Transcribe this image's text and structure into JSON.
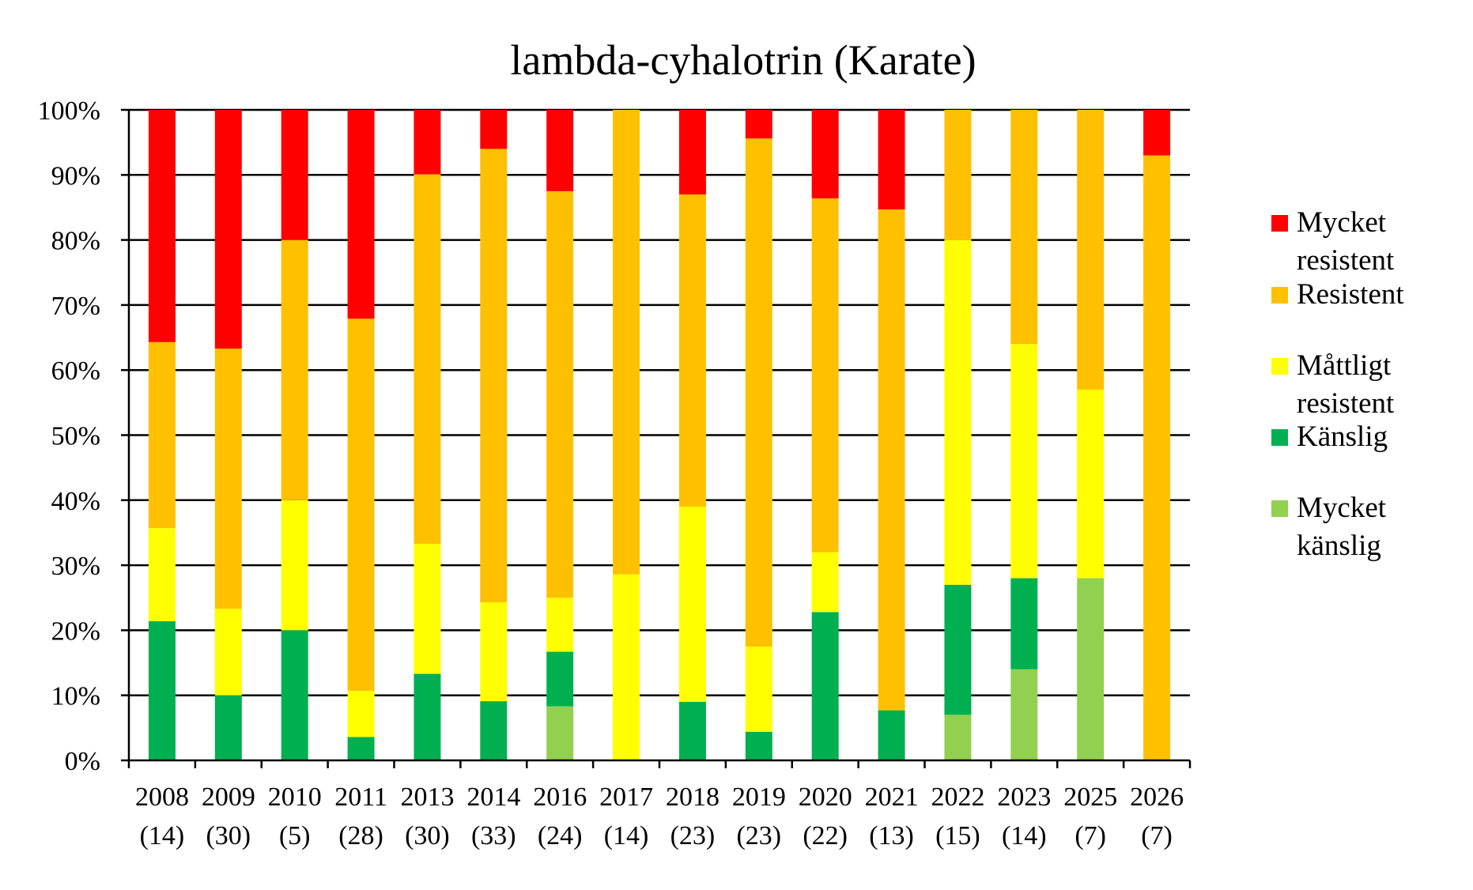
{
  "chart_data": {
    "type": "bar",
    "stacked": true,
    "title": "lambda-cyhalotrin (Karate)",
    "xlabel": "",
    "ylabel": "",
    "ylim": [
      0,
      100
    ],
    "y_ticks": [
      "0%",
      "10%",
      "20%",
      "30%",
      "40%",
      "50%",
      "60%",
      "70%",
      "80%",
      "90%",
      "100%"
    ],
    "grid": true,
    "legend_position": "right",
    "categories": [
      {
        "year": "2008",
        "n": "(14)"
      },
      {
        "year": "2009",
        "n": "(30)"
      },
      {
        "year": "2010",
        "n": "(5)"
      },
      {
        "year": "2011",
        "n": "(28)"
      },
      {
        "year": "2013",
        "n": "(30)"
      },
      {
        "year": "2014",
        "n": "(33)"
      },
      {
        "year": "2016",
        "n": "(24)"
      },
      {
        "year": "2017",
        "n": "(14)"
      },
      {
        "year": "2018",
        "n": "(23)"
      },
      {
        "year": "2019",
        "n": "(23)"
      },
      {
        "year": "2020",
        "n": "(22)"
      },
      {
        "year": "2021",
        "n": "(13)"
      },
      {
        "year": "2022",
        "n": "(15)"
      },
      {
        "year": "2023",
        "n": "(14)"
      },
      {
        "year": "2025",
        "n": "(7)"
      },
      {
        "year": "2026",
        "n": "(7)"
      }
    ],
    "series": [
      {
        "name": "Mycket känslig",
        "legend_lines": [
          "Mycket",
          "känslig"
        ],
        "color": "#92d050",
        "values": [
          0,
          0,
          0,
          0,
          0,
          0,
          8.3,
          0,
          0,
          0,
          0,
          0,
          7,
          14,
          28,
          0
        ]
      },
      {
        "name": "Känslig",
        "legend_lines": [
          "Känslig"
        ],
        "color": "#00b050",
        "values": [
          21.4,
          10,
          20,
          3.6,
          13.3,
          9.1,
          8.4,
          0,
          9,
          4.4,
          22.8,
          7.7,
          20,
          14,
          0,
          0
        ]
      },
      {
        "name": "Måttligt resistent",
        "legend_lines": [
          "Måttligt",
          "resistent"
        ],
        "color": "#ffff00",
        "values": [
          14.3,
          13.3,
          20,
          7.1,
          20,
          15.2,
          8.3,
          28.6,
          30,
          13.1,
          9.2,
          0,
          53,
          36,
          29,
          0
        ]
      },
      {
        "name": "Resistent",
        "legend_lines": [
          "Resistent"
        ],
        "color": "#ffc000",
        "values": [
          28.6,
          40,
          40,
          57.2,
          56.8,
          69.7,
          62.5,
          71.4,
          48,
          78.1,
          54.4,
          77,
          20,
          36,
          43,
          93
        ]
      },
      {
        "name": "Mycket resistent",
        "legend_lines": [
          "Mycket",
          "resistent"
        ],
        "color": "#ff0000",
        "values": [
          35.7,
          36.7,
          20,
          32.1,
          9.9,
          6,
          12.5,
          0,
          13,
          4.4,
          13.6,
          15.3,
          0,
          0,
          0,
          7
        ]
      }
    ],
    "legend_order": [
      "Mycket resistent",
      "Resistent",
      "Måttligt resistent",
      "Känslig",
      "Mycket känslig"
    ]
  }
}
